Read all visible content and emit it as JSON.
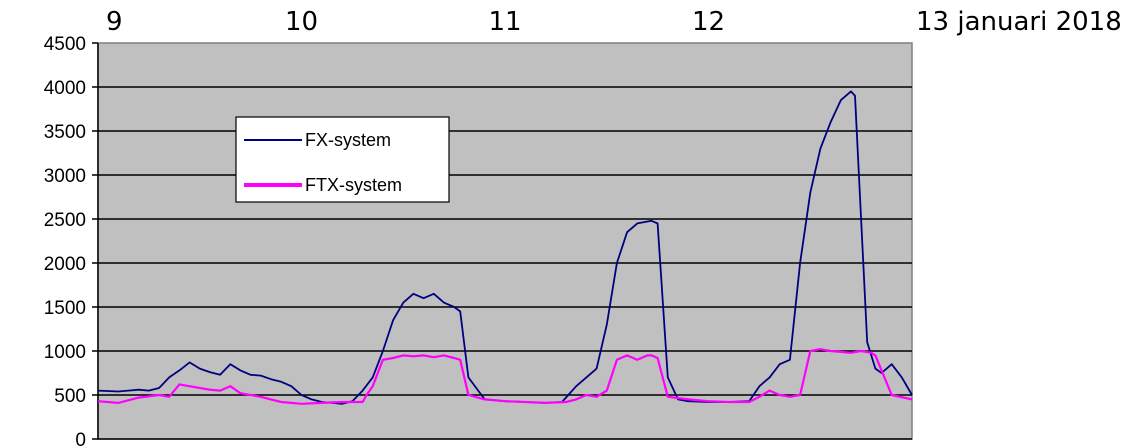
{
  "chart_data": {
    "type": "line",
    "title": "",
    "xlabel": "",
    "ylabel": "",
    "x_tick_labels": [
      "9",
      "10",
      "11",
      "12",
      "13 januari 2018"
    ],
    "x_ticks": [
      9,
      10,
      11,
      12,
      13
    ],
    "xlim": [
      9,
      13
    ],
    "ylim": [
      0,
      4500
    ],
    "y_ticks": [
      0,
      500,
      1000,
      1500,
      2000,
      2500,
      3000,
      3500,
      4000,
      4500
    ],
    "grid": "horizontal",
    "legend_position": "upper-left",
    "series": [
      {
        "name": "FX-system",
        "color": "#000080",
        "x": [
          9.0,
          9.1,
          9.2,
          9.25,
          9.3,
          9.35,
          9.4,
          9.45,
          9.5,
          9.55,
          9.6,
          9.65,
          9.7,
          9.75,
          9.8,
          9.85,
          9.9,
          9.95,
          10.0,
          10.05,
          10.1,
          10.15,
          10.2,
          10.25,
          10.3,
          10.35,
          10.4,
          10.45,
          10.5,
          10.55,
          10.6,
          10.65,
          10.7,
          10.75,
          10.78,
          10.82,
          10.9,
          11.0,
          11.1,
          11.2,
          11.28,
          11.35,
          11.4,
          11.45,
          11.5,
          11.55,
          11.6,
          11.65,
          11.72,
          11.75,
          11.8,
          11.85,
          11.9,
          12.0,
          12.1,
          12.2,
          12.25,
          12.3,
          12.35,
          12.4,
          12.45,
          12.5,
          12.55,
          12.6,
          12.65,
          12.7,
          12.72,
          12.75,
          12.78,
          12.82,
          12.85,
          12.9,
          12.95,
          13.0
        ],
        "y": [
          550,
          540,
          560,
          550,
          580,
          700,
          780,
          870,
          800,
          760,
          730,
          850,
          780,
          730,
          720,
          680,
          650,
          600,
          500,
          450,
          420,
          410,
          400,
          430,
          550,
          700,
          1000,
          1350,
          1550,
          1650,
          1600,
          1650,
          1550,
          1500,
          1450,
          700,
          450,
          430,
          420,
          410,
          420,
          600,
          700,
          800,
          1300,
          2000,
          2350,
          2450,
          2480,
          2450,
          700,
          450,
          430,
          420,
          420,
          430,
          600,
          700,
          850,
          900,
          2000,
          2800,
          3300,
          3600,
          3850,
          3950,
          3900,
          2500,
          1100,
          800,
          750,
          850,
          700,
          500
        ]
      },
      {
        "name": "FTX-system",
        "color": "#ff00ff",
        "x": [
          9.0,
          9.1,
          9.2,
          9.3,
          9.35,
          9.4,
          9.45,
          9.5,
          9.55,
          9.6,
          9.65,
          9.7,
          9.8,
          9.85,
          9.9,
          10.0,
          10.1,
          10.2,
          10.3,
          10.32,
          10.35,
          10.4,
          10.45,
          10.5,
          10.55,
          10.6,
          10.65,
          10.7,
          10.75,
          10.78,
          10.82,
          10.9,
          11.0,
          11.1,
          11.2,
          11.3,
          11.35,
          11.4,
          11.45,
          11.5,
          11.55,
          11.6,
          11.65,
          11.7,
          11.72,
          11.75,
          11.8,
          11.9,
          12.0,
          12.1,
          12.2,
          12.25,
          12.3,
          12.35,
          12.4,
          12.45,
          12.5,
          12.55,
          12.6,
          12.65,
          12.7,
          12.75,
          12.8,
          12.82,
          12.9,
          13.0
        ],
        "y": [
          430,
          410,
          470,
          500,
          480,
          620,
          600,
          580,
          560,
          550,
          600,
          520,
          480,
          450,
          420,
          400,
          410,
          420,
          420,
          500,
          600,
          900,
          920,
          950,
          940,
          950,
          930,
          950,
          920,
          900,
          500,
          450,
          430,
          420,
          410,
          420,
          450,
          500,
          480,
          550,
          900,
          950,
          900,
          950,
          950,
          920,
          480,
          450,
          430,
          420,
          420,
          480,
          550,
          500,
          480,
          500,
          1000,
          1020,
          1000,
          990,
          980,
          1000,
          980,
          950,
          500,
          450
        ]
      }
    ]
  }
}
